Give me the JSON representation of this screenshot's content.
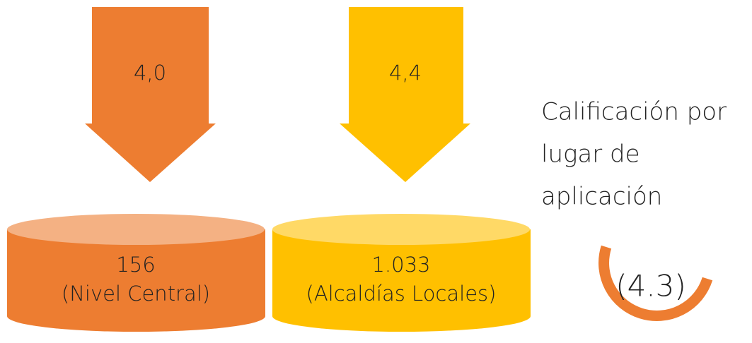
{
  "items": [
    {
      "rating": "4,0",
      "count": "156",
      "place": "(Nivel Central)"
    },
    {
      "rating": "4,4",
      "count": "1.033",
      "place": "(Alcaldías Locales)"
    }
  ],
  "title_lines": [
    "Calificación por",
    "lugar de",
    "aplicación"
  ],
  "score": "(4.3)"
}
